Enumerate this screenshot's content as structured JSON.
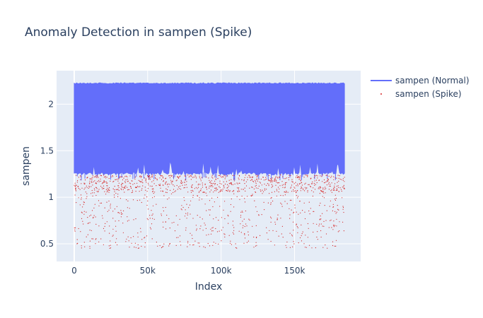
{
  "chart_data": {
    "type": "line",
    "title": "Anomaly Detection in sampen (Spike)",
    "xlabel": "Index",
    "ylabel": "sampen",
    "xlim": [
      -12000,
      195000
    ],
    "ylim": [
      0.31,
      2.36
    ],
    "x_ticks": [
      0,
      50000,
      100000,
      150000
    ],
    "x_tick_labels": [
      "0",
      "50k",
      "100k",
      "150k"
    ],
    "y_ticks": [
      0.5,
      1,
      1.5,
      2
    ],
    "y_tick_labels": [
      "0.5",
      "1",
      "1.5",
      "2"
    ],
    "grid": true,
    "legend_position": "top-right",
    "series": [
      {
        "name": "sampen (Normal)",
        "kind": "line",
        "color": "#636efa",
        "x_range": [
          0,
          184000
        ],
        "band": [
          1.24,
          2.23
        ],
        "upper_value": 2.23,
        "lower_baseline": 1.24
      },
      {
        "name": "sampen (Spike)",
        "kind": "scatter",
        "color": "#d62728",
        "x_range": [
          0,
          184000
        ],
        "y_range": [
          0.45,
          1.24
        ],
        "dense_band": [
          1.05,
          1.24
        ]
      }
    ]
  }
}
